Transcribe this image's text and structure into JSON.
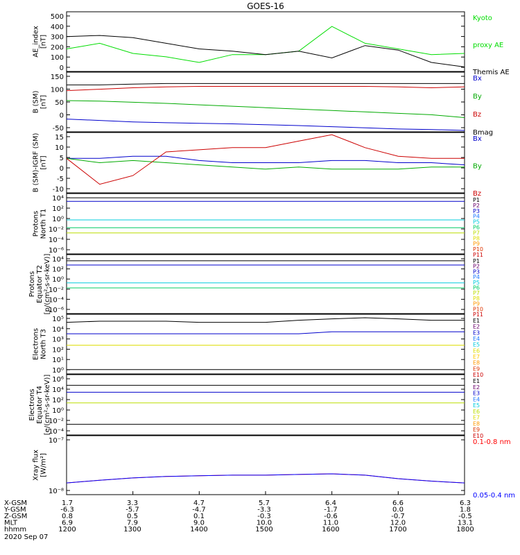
{
  "title": "GOES-16",
  "panels": [
    {
      "ylabel": [
        "AE_index",
        "[nT]"
      ],
      "ticks": [
        "500",
        "400",
        "300",
        "200",
        "100",
        "0"
      ],
      "ylog": false,
      "yrange": [
        0,
        530
      ],
      "legend": [
        {
          "text": "Kyoto",
          "color": "#00dd00"
        },
        {
          "text": "proxy AE",
          "color": "#00dd00"
        },
        {
          "text": "Themis AE",
          "color": "#000000"
        }
      ]
    },
    {
      "ylabel": [
        "B (SM)",
        "[nT]"
      ],
      "ticks": [
        "150",
        "100",
        "50",
        "0",
        "-50"
      ],
      "ylog": false,
      "yrange": [
        -60,
        150
      ],
      "legend": [
        {
          "text": "Bx",
          "color": "#0000cc"
        },
        {
          "text": "By",
          "color": "#00aa00"
        },
        {
          "text": "Bz",
          "color": "#cc0000"
        },
        {
          "text": "Bmag",
          "color": "#000000"
        }
      ]
    },
    {
      "ylabel": [
        "B (SM)-IGRF (SM)",
        "[nT]"
      ],
      "ticks": [
        "15",
        "10",
        "5",
        "0",
        "-5",
        "-10"
      ],
      "ylog": false,
      "yrange": [
        -11,
        17
      ],
      "legend": [
        {
          "text": "Bx",
          "color": "#0000cc"
        },
        {
          "text": "By",
          "color": "#00aa00"
        },
        {
          "text": "Bz",
          "color": "#cc0000"
        }
      ]
    },
    {
      "ylabel": [
        "Protons",
        "North T1"
      ],
      "ticks": [
        "10⁴",
        "10²",
        "10⁰",
        "10⁻²",
        "10⁻⁴",
        "10⁻⁶"
      ],
      "ylog": true,
      "yrange": [
        -7,
        4.5
      ],
      "legend": [
        {
          "text": "P1",
          "color": "#000000"
        },
        {
          "text": "P2",
          "color": "#6a006a"
        },
        {
          "text": "P3",
          "color": "#0000cc"
        },
        {
          "text": "P4",
          "color": "#1e78ff"
        },
        {
          "text": "P5",
          "color": "#00ccdd"
        },
        {
          "text": "P6",
          "color": "#00cc66"
        },
        {
          "text": "P7",
          "color": "#bbdd00"
        },
        {
          "text": "P8",
          "color": "#dddd00"
        },
        {
          "text": "P9",
          "color": "#ff9900"
        },
        {
          "text": "P10",
          "color": "#dd3300"
        },
        {
          "text": "P11",
          "color": "#cc0000"
        }
      ]
    },
    {
      "ylabel": [
        "Protons",
        "Equator T2",
        "[p/(cm²-s-sr-keV)]"
      ],
      "ticks": [
        "10⁴",
        "10²",
        "10⁰",
        "10⁻²",
        "10⁻⁴",
        "10⁻⁶"
      ],
      "ylog": true,
      "yrange": [
        -7,
        4.5
      ],
      "legend": [
        {
          "text": "P1",
          "color": "#000000"
        },
        {
          "text": "P2",
          "color": "#6a006a"
        },
        {
          "text": "P3",
          "color": "#0000cc"
        },
        {
          "text": "P4",
          "color": "#1e78ff"
        },
        {
          "text": "P5",
          "color": "#00ccdd"
        },
        {
          "text": "P6",
          "color": "#00cc66"
        },
        {
          "text": "P7",
          "color": "#bbdd00"
        },
        {
          "text": "P8",
          "color": "#dddd00"
        },
        {
          "text": "P9",
          "color": "#ff9900"
        },
        {
          "text": "P10",
          "color": "#dd3300"
        },
        {
          "text": "P11",
          "color": "#cc0000"
        }
      ]
    },
    {
      "ylabel": [
        "Electrons",
        "North T3"
      ],
      "ticks": [
        "10⁵",
        "10⁴",
        "10³",
        "10²",
        "10¹",
        "10⁰"
      ],
      "ylog": true,
      "yrange": [
        -0.2,
        5
      ],
      "legend": [
        {
          "text": "E1",
          "color": "#000000"
        },
        {
          "text": "E2",
          "color": "#6a006a"
        },
        {
          "text": "E3",
          "color": "#0000cc"
        },
        {
          "text": "E4",
          "color": "#1e78ff"
        },
        {
          "text": "E5",
          "color": "#00ccdd"
        },
        {
          "text": "E6",
          "color": "#dddd00"
        },
        {
          "text": "E7",
          "color": "#ffcc00"
        },
        {
          "text": "E8",
          "color": "#ff9900"
        },
        {
          "text": "E9",
          "color": "#dd3300"
        },
        {
          "text": "E10",
          "color": "#cc0000"
        }
      ]
    },
    {
      "ylabel": [
        "Electrons",
        "Equator T4",
        "[e/(cm²-s-sr-keV)]"
      ],
      "ticks": [
        "10⁶",
        "10⁴",
        "10²",
        "10⁰",
        "10⁻²",
        "10⁻⁴"
      ],
      "ylog": true,
      "yrange": [
        -5,
        6.3
      ],
      "legend": [
        {
          "text": "E1",
          "color": "#000000"
        },
        {
          "text": "E2",
          "color": "#6a006a"
        },
        {
          "text": "E3",
          "color": "#0000cc"
        },
        {
          "text": "E4",
          "color": "#1e78ff"
        },
        {
          "text": "E5",
          "color": "#00ccdd"
        },
        {
          "text": "E6",
          "color": "#bbdd00"
        },
        {
          "text": "E7",
          "color": "#dddd00"
        },
        {
          "text": "E8",
          "color": "#ff9900"
        },
        {
          "text": "E9",
          "color": "#dd3300"
        },
        {
          "text": "E10",
          "color": "#cc0000"
        }
      ]
    },
    {
      "ylabel": [
        "Xray flux",
        "[W/m²]"
      ],
      "ticks": [
        "10⁻⁷",
        "10⁻⁸"
      ],
      "ylog": true,
      "yrange": [
        -8.15,
        -7
      ],
      "legend": [
        {
          "text": "0.1-0.8 nm",
          "color": "#ff0000"
        },
        {
          "text": "0.05-0.4 nm",
          "color": "#0000ff"
        }
      ]
    }
  ],
  "footer": {
    "rows": [
      {
        "label": "X-GSM",
        "values": [
          "1.7",
          "3.3",
          "4.7",
          "5.7",
          "6.4",
          "6.6",
          "6.3"
        ]
      },
      {
        "label": "Y-GSM",
        "values": [
          "-6.3",
          "-5.7",
          "-4.7",
          "-3.3",
          "-1.7",
          "0.0",
          "1.8"
        ]
      },
      {
        "label": "Z-GSM",
        "values": [
          "0.8",
          "0.5",
          "0.1",
          "-0.3",
          "-0.6",
          "-0.7",
          "-0.5"
        ]
      },
      {
        "label": "MLT",
        "values": [
          "6.9",
          "7.9",
          "9.0",
          "10.0",
          "11.0",
          "12.0",
          "13.1"
        ]
      },
      {
        "label": "hhmm",
        "values": [
          "1200",
          "1300",
          "1400",
          "1500",
          "1600",
          "1700",
          "1800"
        ]
      }
    ],
    "date": "2020 Sep 07"
  },
  "chart_data": {
    "type": "line",
    "title": "GOES-16",
    "x_unit": "hhmm",
    "x": [
      1200,
      1230,
      1300,
      1330,
      1400,
      1430,
      1500,
      1530,
      1600,
      1630,
      1700,
      1730,
      1800
    ],
    "panels": [
      {
        "name": "AE_index",
        "ylim": [
          0,
          530
        ],
        "series": [
          {
            "name": "Kyoto proxy AE",
            "values": [
              200,
              250,
              160,
              130,
              80,
              150,
              150,
              180,
              400,
              250,
              200,
              150,
              160
            ]
          },
          {
            "name": "Themis AE",
            "values": [
              310,
              320,
              300,
              250,
              200,
              180,
              150,
              180,
              120,
              230,
              190,
              80,
              40
            ]
          }
        ]
      },
      {
        "name": "B (SM)",
        "ylim": [
          -60,
          150
        ],
        "series": [
          {
            "name": "Bx",
            "values": [
              -15,
              -20,
              -25,
              -28,
              -30,
              -32,
              -35,
              -38,
              -42,
              -46,
              -50,
              -52,
              -55
            ]
          },
          {
            "name": "By",
            "values": [
              50,
              48,
              44,
              40,
              35,
              30,
              25,
              20,
              15,
              10,
              5,
              0,
              -10
            ]
          },
          {
            "name": "Bz",
            "values": [
              85,
              90,
              95,
              98,
              100,
              100,
              100,
              100,
              100,
              100,
              98,
              95,
              98
            ]
          },
          {
            "name": "Bmag",
            "values": [
              105,
              105,
              108,
              110,
              110,
              110,
              110,
              110,
              110,
              110,
              110,
              110,
              110
            ]
          }
        ]
      },
      {
        "name": "B (SM)-IGRF (SM)",
        "ylim": [
          -11,
          17
        ],
        "series": [
          {
            "name": "Bx",
            "values": [
              5,
              5,
              6,
              6,
              4,
              3,
              3,
              3,
              4,
              4,
              3,
              3,
              2
            ]
          },
          {
            "name": "By",
            "values": [
              5,
              3,
              4,
              3,
              2,
              1,
              0,
              1,
              0,
              0,
              0,
              1,
              1
            ]
          },
          {
            "name": "Bz",
            "values": [
              5,
              -7,
              -3,
              8,
              9,
              10,
              10,
              13,
              16,
              10,
              6,
              5,
              5
            ]
          }
        ]
      },
      {
        "name": "Protons North T1",
        "ylim": [
          "1e-7",
          "3e4"
        ],
        "series": [
          {
            "name": "P1",
            "values": [
              5000,
              5000,
              5000,
              5000,
              5000,
              5000,
              5000,
              5000,
              5000,
              5000,
              5000,
              5000,
              5000
            ]
          },
          {
            "name": "P3",
            "values": [
              1000,
              1000,
              1000,
              1000,
              1000,
              1000,
              1000,
              1000,
              1000,
              1000,
              1000,
              1000,
              1000
            ]
          },
          {
            "name": "P5",
            "values": [
              0.3,
              0.3,
              0.3,
              0.3,
              0.3,
              0.3,
              0.3,
              0.3,
              0.3,
              0.3,
              0.3,
              0.3,
              0.3
            ]
          },
          {
            "name": "P6",
            "values": [
              0.01,
              0.01,
              0.01,
              0.01,
              0.01,
              0.01,
              0.01,
              0.01,
              0.01,
              0.01,
              0.01,
              0.01,
              0.01
            ]
          },
          {
            "name": "P7",
            "values": [
              0.001,
              0.001,
              0.001,
              0.001,
              0.001,
              0.001,
              0.001,
              0.001,
              0.001,
              0.001,
              0.001,
              0.001,
              0.001
            ]
          }
        ]
      },
      {
        "name": "Protons Equator T2",
        "ylim": [
          "1e-7",
          "3e4"
        ],
        "series": [
          {
            "name": "P1",
            "values": [
              2000,
              2000,
              2000,
              2000,
              2000,
              2000,
              2000,
              2000,
              2000,
              2000,
              2000,
              2000,
              2000
            ]
          },
          {
            "name": "P3",
            "values": [
              300,
              300,
              300,
              300,
              300,
              300,
              300,
              300,
              300,
              300,
              300,
              300,
              300
            ]
          },
          {
            "name": "P5",
            "values": [
              0.1,
              0.1,
              0.1,
              0.1,
              0.1,
              0.1,
              0.1,
              0.1,
              0.1,
              0.1,
              0.1,
              0.1,
              0.1
            ]
          },
          {
            "name": "P6",
            "values": [
              0.01,
              0.01,
              0.01,
              0.01,
              0.01,
              0.01,
              0.01,
              0.01,
              0.01,
              0.01,
              0.01,
              0.01,
              0.01
            ]
          }
        ]
      },
      {
        "name": "Electrons North T3",
        "ylim": [
          "0.6",
          "1e5"
        ],
        "series": [
          {
            "name": "E1",
            "values": [
              20000,
              25000,
              25000,
              25000,
              20000,
              20000,
              20000,
              30000,
              40000,
              50000,
              40000,
              30000,
              30000
            ]
          },
          {
            "name": "E3",
            "values": [
              2000,
              2000,
              2000,
              2000,
              2000,
              2000,
              2000,
              2000,
              3000,
              3000,
              3000,
              3000,
              3000
            ]
          },
          {
            "name": "E6",
            "values": [
              200,
              200,
              200,
              200,
              200,
              200,
              200,
              200,
              200,
              200,
              200,
              200,
              200
            ]
          },
          {
            "name": "E10",
            "values": [
              1.5,
              1.5,
              1.5,
              1.5,
              1.5,
              1.5,
              1.5,
              1.5,
              1.5,
              1.5,
              1.5,
              1.5,
              1.5
            ]
          }
        ]
      },
      {
        "name": "Electrons Equator T4",
        "ylim": [
          "1e-5",
          "2e6"
        ],
        "series": [
          {
            "name": "E1",
            "values": [
              20000,
              20000,
              20000,
              20000,
              20000,
              20000,
              20000,
              20000,
              20000,
              20000,
              20000,
              20000,
              20000
            ]
          },
          {
            "name": "E3",
            "values": [
              1000,
              1000,
              1000,
              1000,
              1000,
              1000,
              1000,
              1000,
              1000,
              1000,
              1000,
              1000,
              1000
            ]
          },
          {
            "name": "E6",
            "values": [
              10,
              10,
              10,
              10,
              10,
              10,
              10,
              10,
              10,
              10,
              10,
              10,
              10
            ]
          },
          {
            "name": "E10",
            "values": [
              0.001,
              0.001,
              0.001,
              0.001,
              0.001,
              0.001,
              0.001,
              0.001,
              0.001,
              0.001,
              0.001,
              0.001,
              0.001
            ]
          }
        ]
      },
      {
        "name": "Xray flux",
        "ylim": [
          "7e-9",
          "1e-7"
        ],
        "series": [
          {
            "name": "0.1-0.8 nm",
            "values": [
              1.2e-08,
              1.35e-08,
              1.5e-08,
              1.6e-08,
              1.65e-08,
              1.7e-08,
              1.7e-08,
              1.75e-08,
              1.8e-08,
              1.7e-08,
              1.45e-08,
              1.3e-08,
              1.2e-08
            ]
          },
          {
            "name": "0.05-0.4 nm",
            "values": [
              1.2e-08,
              1.35e-08,
              1.5e-08,
              1.6e-08,
              1.65e-08,
              1.7e-08,
              1.7e-08,
              1.75e-08,
              1.8e-08,
              1.7e-08,
              1.45e-08,
              1.3e-08,
              1.2e-08
            ]
          }
        ]
      }
    ]
  }
}
